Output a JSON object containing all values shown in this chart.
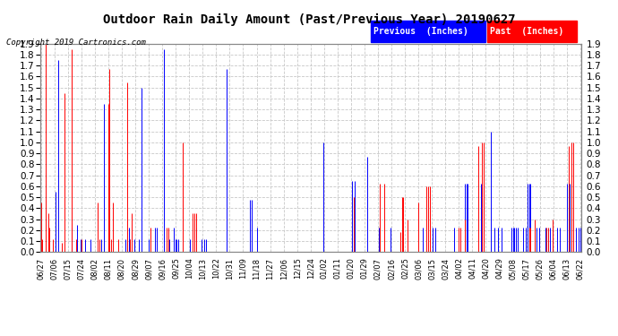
{
  "title": "Outdoor Rain Daily Amount (Past/Previous Year) 20190627",
  "copyright": "Copyright 2019 Cartronics.com",
  "legend_labels": [
    "Previous  (Inches)",
    "Past  (Inches)"
  ],
  "ylim": [
    0.0,
    1.9
  ],
  "yticks": [
    0.0,
    0.1,
    0.2,
    0.3,
    0.4,
    0.5,
    0.6,
    0.7,
    0.8,
    0.9,
    1.0,
    1.1,
    1.2,
    1.3,
    1.4,
    1.5,
    1.6,
    1.7,
    1.8,
    1.9
  ],
  "background_color": "#ffffff",
  "grid_color": "#c8c8c8",
  "x_labels": [
    "06/27",
    "07/06",
    "07/15",
    "07/24",
    "08/02",
    "08/11",
    "08/20",
    "08/29",
    "09/07",
    "09/16",
    "09/25",
    "10/04",
    "10/13",
    "10/22",
    "10/31",
    "11/09",
    "11/18",
    "11/27",
    "12/06",
    "12/15",
    "12/24",
    "01/02",
    "01/11",
    "01/20",
    "01/29",
    "02/07",
    "02/16",
    "02/25",
    "03/06",
    "03/15",
    "03/24",
    "04/02",
    "04/11",
    "04/20",
    "04/29",
    "05/08",
    "05/17",
    "05/26",
    "06/04",
    "06/13",
    "06/22"
  ],
  "blue_data": [
    0.0,
    0.0,
    0.0,
    0.0,
    0.0,
    0.0,
    0.0,
    0.0,
    0.0,
    0.0,
    0.55,
    0.0,
    1.75,
    0.0,
    0.0,
    0.0,
    0.0,
    0.0,
    0.0,
    0.0,
    0.0,
    0.22,
    0.0,
    0.0,
    0.0,
    0.25,
    0.0,
    0.12,
    0.0,
    0.0,
    0.12,
    0.0,
    0.0,
    0.0,
    0.12,
    0.0,
    0.0,
    0.0,
    0.0,
    0.0,
    0.0,
    0.12,
    0.0,
    1.35,
    0.0,
    0.0,
    0.0,
    0.12,
    0.0,
    0.0,
    0.0,
    0.0,
    0.0,
    0.0,
    0.0,
    0.0,
    0.0,
    0.0,
    0.12,
    0.0,
    0.22,
    0.12,
    0.0,
    0.0,
    0.12,
    0.0,
    0.0,
    0.12,
    0.0,
    1.5,
    0.0,
    0.0,
    0.0,
    0.0,
    0.12,
    0.0,
    0.0,
    0.0,
    0.22,
    0.22,
    0.0,
    0.0,
    0.0,
    0.0,
    1.85,
    0.0,
    0.0,
    0.0,
    0.12,
    0.0,
    0.0,
    0.22,
    0.12,
    0.12,
    0.12,
    0.0,
    0.0,
    0.0,
    0.0,
    0.0,
    0.0,
    0.0,
    0.12,
    0.0,
    0.0,
    0.0,
    0.22,
    0.0,
    0.0,
    0.0,
    0.12,
    0.0,
    0.12,
    0.12,
    0.0,
    0.0,
    0.0,
    0.0,
    0.0,
    0.0,
    0.0,
    0.0,
    0.0,
    0.0,
    0.0,
    0.0,
    0.0,
    1.67,
    0.0,
    0.0,
    0.0,
    0.0,
    0.0,
    0.0,
    0.0,
    0.0,
    0.0,
    0.0,
    0.0,
    0.0,
    0.0,
    0.0,
    0.0,
    0.48,
    0.48,
    0.0,
    0.0,
    0.0,
    0.22,
    0.0,
    0.0,
    0.0,
    0.0,
    0.0,
    0.0,
    0.0,
    0.0,
    0.0,
    0.0,
    0.0,
    0.0,
    0.0,
    0.0,
    0.0,
    0.0,
    0.0,
    0.0,
    0.0,
    0.0,
    0.0,
    0.0,
    0.0,
    0.0,
    0.0,
    0.0,
    0.0,
    0.0,
    0.0,
    0.0,
    0.0,
    0.0,
    0.0,
    0.0,
    0.0,
    0.0,
    0.0,
    0.0,
    0.0,
    0.0,
    0.0,
    0.0,
    0.0,
    0.0,
    1.0,
    0.0,
    0.0,
    0.0,
    0.0,
    0.0,
    0.0,
    0.0,
    0.0,
    0.0,
    0.0,
    0.0,
    0.0,
    0.0,
    0.0,
    0.0,
    0.0,
    0.0,
    0.0,
    0.0,
    0.65,
    0.0,
    0.65,
    0.0,
    0.0,
    0.0,
    0.0,
    0.0,
    0.0,
    0.0,
    0.87,
    0.0,
    0.0,
    0.0,
    0.0,
    0.0,
    0.0,
    0.0,
    0.22,
    0.0,
    0.0,
    0.0,
    0.0,
    0.0,
    0.0,
    0.0,
    0.22,
    0.0,
    0.0,
    0.0,
    0.0,
    0.0,
    0.0,
    0.0,
    0.0,
    0.0,
    0.0,
    0.0,
    0.0,
    0.0,
    0.0,
    0.0,
    0.0,
    0.0,
    0.0,
    0.0,
    0.0,
    0.0,
    0.22,
    0.0,
    0.0,
    0.0,
    0.0,
    0.0,
    0.0,
    0.22,
    0.0,
    0.22,
    0.0,
    0.0,
    0.0,
    0.0,
    0.0,
    0.0,
    0.0,
    0.0,
    0.0,
    0.0,
    0.0,
    0.0,
    0.22,
    0.0,
    0.0,
    0.0,
    0.0,
    0.0,
    0.0,
    0.62,
    0.62,
    0.62,
    0.0,
    0.0,
    0.0,
    0.0,
    0.0,
    0.0,
    0.0,
    0.0,
    0.62,
    0.62,
    0.62,
    0.0,
    0.0,
    0.0,
    0.0,
    1.1,
    0.0,
    0.22,
    0.0,
    0.0,
    0.22,
    0.0,
    0.22,
    0.0,
    0.0,
    0.0,
    0.0,
    0.0,
    0.0,
    0.22,
    0.22,
    0.22,
    0.22,
    0.22,
    0.0,
    0.0,
    0.0,
    0.22,
    0.0,
    0.22,
    0.62,
    0.62,
    0.62,
    0.0,
    0.0,
    0.0,
    0.22,
    0.0,
    0.22,
    0.0,
    0.0,
    0.0,
    0.22,
    0.0,
    0.0,
    0.22,
    0.0,
    0.22,
    0.0,
    0.0,
    0.22,
    0.0,
    0.22,
    0.0,
    0.0,
    0.0,
    0.0,
    0.62,
    0.0,
    0.62,
    0.62,
    0.0,
    0.0,
    0.22,
    0.0,
    0.22,
    0.22
  ],
  "red_data": [
    0.45,
    0.12,
    0.0,
    1.9,
    0.0,
    0.35,
    0.22,
    0.0,
    0.12,
    0.0,
    0.0,
    0.0,
    0.0,
    0.0,
    0.08,
    0.0,
    1.45,
    0.0,
    0.0,
    0.0,
    0.0,
    1.85,
    0.0,
    0.0,
    0.12,
    0.0,
    0.0,
    0.0,
    0.12,
    0.0,
    0.0,
    0.0,
    0.0,
    0.0,
    0.0,
    0.0,
    0.0,
    0.0,
    0.0,
    0.45,
    0.12,
    0.0,
    0.0,
    0.0,
    0.0,
    0.0,
    1.35,
    1.67,
    0.12,
    0.45,
    0.0,
    0.0,
    0.0,
    0.12,
    0.0,
    0.0,
    0.0,
    0.0,
    0.0,
    1.55,
    0.0,
    0.12,
    0.35,
    0.0,
    0.0,
    0.0,
    0.0,
    0.0,
    0.0,
    0.0,
    0.0,
    0.0,
    0.0,
    0.0,
    0.0,
    0.22,
    0.0,
    0.0,
    0.0,
    0.0,
    0.0,
    0.0,
    0.0,
    0.0,
    0.0,
    0.0,
    0.22,
    0.22,
    0.0,
    0.0,
    0.0,
    0.0,
    0.0,
    0.0,
    0.0,
    0.0,
    0.0,
    1.0,
    0.0,
    0.0,
    0.0,
    0.0,
    0.0,
    0.0,
    0.35,
    0.35,
    0.35,
    0.0,
    0.0,
    0.0,
    0.0,
    0.0,
    0.0,
    0.0,
    0.0,
    0.0,
    0.0,
    0.0,
    0.0,
    0.0,
    0.0,
    0.0,
    0.0,
    0.0,
    0.0,
    0.0,
    0.0,
    0.0,
    0.0,
    0.0,
    0.0,
    0.0,
    0.0,
    0.0,
    0.0,
    0.0,
    0.0,
    0.0,
    0.0,
    0.0,
    0.0,
    0.0,
    0.0,
    0.0,
    0.0,
    0.0,
    0.0,
    0.0,
    0.0,
    0.0,
    0.0,
    0.0,
    0.0,
    0.0,
    0.0,
    0.0,
    0.0,
    0.0,
    0.0,
    0.0,
    0.0,
    0.0,
    0.0,
    0.0,
    0.0,
    0.0,
    0.0,
    0.0,
    0.0,
    0.0,
    0.0,
    0.0,
    0.0,
    0.0,
    0.0,
    0.0,
    0.0,
    0.0,
    0.0,
    0.0,
    0.0,
    0.0,
    0.0,
    0.0,
    0.0,
    0.0,
    0.0,
    0.0,
    0.0,
    0.0,
    0.0,
    0.0,
    0.0,
    0.0,
    0.0,
    0.0,
    0.0,
    0.0,
    0.0,
    0.0,
    0.0,
    0.0,
    0.0,
    0.0,
    0.0,
    0.0,
    0.0,
    0.0,
    0.0,
    0.0,
    0.0,
    0.0,
    0.0,
    0.0,
    0.5,
    0.0,
    0.0,
    0.0,
    0.0,
    0.0,
    0.0,
    0.0,
    0.0,
    0.0,
    0.0,
    0.0,
    0.0,
    0.0,
    0.0,
    0.0,
    0.0,
    0.0,
    0.62,
    0.0,
    0.0,
    0.62,
    0.0,
    0.0,
    0.0,
    0.0,
    0.0,
    0.0,
    0.0,
    0.0,
    0.0,
    0.0,
    0.18,
    0.5,
    0.5,
    0.0,
    0.0,
    0.3,
    0.0,
    0.0,
    0.0,
    0.0,
    0.0,
    0.0,
    0.45,
    0.0,
    0.0,
    0.0,
    0.0,
    0.0,
    0.6,
    0.6,
    0.6,
    0.0,
    0.0,
    0.0,
    0.0,
    0.0,
    0.0,
    0.0,
    0.0,
    0.0,
    0.0,
    0.0,
    0.0,
    0.0,
    0.0,
    0.0,
    0.0,
    0.0,
    0.0,
    0.0,
    0.22,
    0.22,
    0.0,
    0.0,
    0.3,
    0.0,
    0.0,
    0.0,
    0.0,
    0.0,
    0.0,
    0.0,
    0.0,
    0.97,
    0.0,
    0.0,
    1.0,
    1.0,
    0.0,
    0.0,
    0.0,
    0.0,
    0.0,
    0.0,
    0.0,
    0.0,
    0.0,
    0.0,
    0.0,
    0.0,
    0.0,
    0.0,
    0.0,
    0.0,
    0.0,
    0.0,
    0.0,
    0.0,
    0.0,
    0.0,
    0.0,
    0.0,
    0.0,
    0.0,
    0.0,
    0.0,
    0.0,
    0.0,
    0.22,
    0.22,
    0.0,
    0.0,
    0.3,
    0.0,
    0.0,
    0.0,
    0.0,
    0.0,
    0.0,
    0.0,
    0.22,
    0.22,
    0.0,
    0.0,
    0.3,
    0.0,
    0.0,
    0.0,
    0.0,
    0.0,
    0.0,
    0.0,
    0.0,
    0.0,
    0.0,
    0.97,
    0.0,
    1.0,
    1.0,
    0.0,
    0.0,
    0.0,
    0.0,
    0.0
  ]
}
